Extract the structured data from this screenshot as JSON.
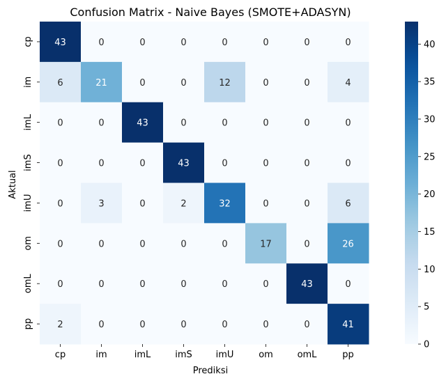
{
  "chart_data": {
    "type": "heatmap",
    "title": "Confusion Matrix - Naive Bayes (SMOTE+ADASYN)",
    "xlabel": "Prediksi",
    "ylabel": "Aktual",
    "x_categories": [
      "cp",
      "im",
      "imL",
      "imS",
      "imU",
      "om",
      "omL",
      "pp"
    ],
    "y_categories": [
      "cp",
      "im",
      "imL",
      "imS",
      "imU",
      "om",
      "omL",
      "pp"
    ],
    "values": [
      [
        43,
        0,
        0,
        0,
        0,
        0,
        0,
        0
      ],
      [
        6,
        21,
        0,
        0,
        12,
        0,
        0,
        4
      ],
      [
        0,
        0,
        43,
        0,
        0,
        0,
        0,
        0
      ],
      [
        0,
        0,
        0,
        43,
        0,
        0,
        0,
        0
      ],
      [
        0,
        3,
        0,
        2,
        32,
        0,
        0,
        6
      ],
      [
        0,
        0,
        0,
        0,
        0,
        17,
        0,
        26
      ],
      [
        0,
        0,
        0,
        0,
        0,
        0,
        43,
        0
      ],
      [
        2,
        0,
        0,
        0,
        0,
        0,
        0,
        41
      ]
    ],
    "colorbar": {
      "min": 0,
      "max": 43,
      "ticks": [
        0,
        5,
        10,
        15,
        20,
        25,
        30,
        35,
        40
      ],
      "colormap": "Blues"
    },
    "annotations": true
  }
}
